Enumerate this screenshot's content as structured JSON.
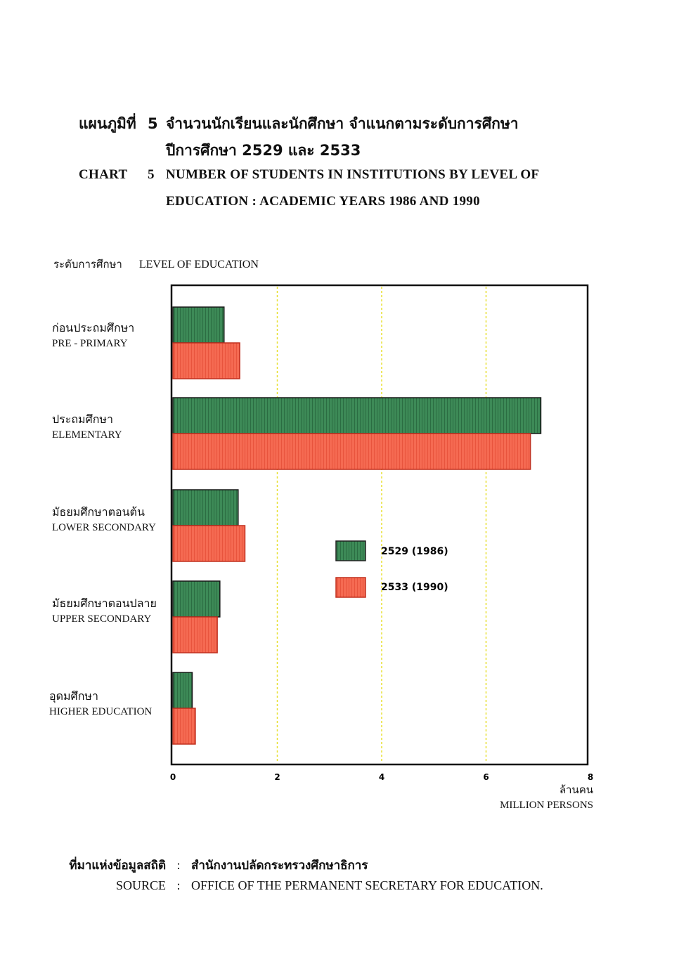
{
  "header": {
    "th_label": "แผนภูมิที่",
    "number": "5",
    "th_title_line1": "จำนวนนักเรียนและนักศึกษา จำแนกตามระดับการศึกษา",
    "th_title_line2": "ปีการศึกษา 2529 และ 2533",
    "en_label": "CHART",
    "en_title_line1": "NUMBER OF STUDENTS IN INSTITUTIONS BY LEVEL OF",
    "en_title_line2": "EDUCATION : ACADEMIC YEARS 1986 AND 1990"
  },
  "axis_title": {
    "th": "ระดับการศึกษา",
    "en": "LEVEL OF EDUCATION"
  },
  "unit": {
    "th": "ล้านคน",
    "en": "MILLION PERSONS"
  },
  "source": {
    "th_label": "ที่มาแห่งข้อมูลสถิติ",
    "th_value": "สำนักงานปลัดกระทรวงศึกษาธิการ",
    "en_label": "SOURCE",
    "en_value": "OFFICE OF THE PERMANENT SECRETARY FOR EDUCATION.",
    "colon": ":"
  },
  "chart_data": {
    "type": "bar",
    "orientation": "horizontal",
    "categories": [
      {
        "th": "ก่อนประถมศึกษา",
        "en": "PRE - PRIMARY"
      },
      {
        "th": "ประถมศึกษา",
        "en": "ELEMENTARY"
      },
      {
        "th": "มัธยมศึกษาตอนต้น",
        "en": "LOWER SECONDARY"
      },
      {
        "th": "มัธยมศึกษาตอนปลาย",
        "en": "UPPER SECONDARY"
      },
      {
        "th": "อุดมศึกษา",
        "en": "HIGHER EDUCATION"
      }
    ],
    "series": [
      {
        "name": "2529 (1986)",
        "color": "#2f7a4a",
        "values": [
          0.98,
          7.05,
          1.25,
          0.9,
          0.37
        ]
      },
      {
        "name": "2533 (1990)",
        "color": "#f05a45",
        "values": [
          1.28,
          6.85,
          1.38,
          0.85,
          0.43
        ]
      }
    ],
    "x_ticks": [
      "0",
      "2",
      "4",
      "6",
      "8"
    ],
    "xlim": [
      0,
      8
    ],
    "gridlines": "vertical dashed yellow",
    "legend_placement": "center-right"
  }
}
